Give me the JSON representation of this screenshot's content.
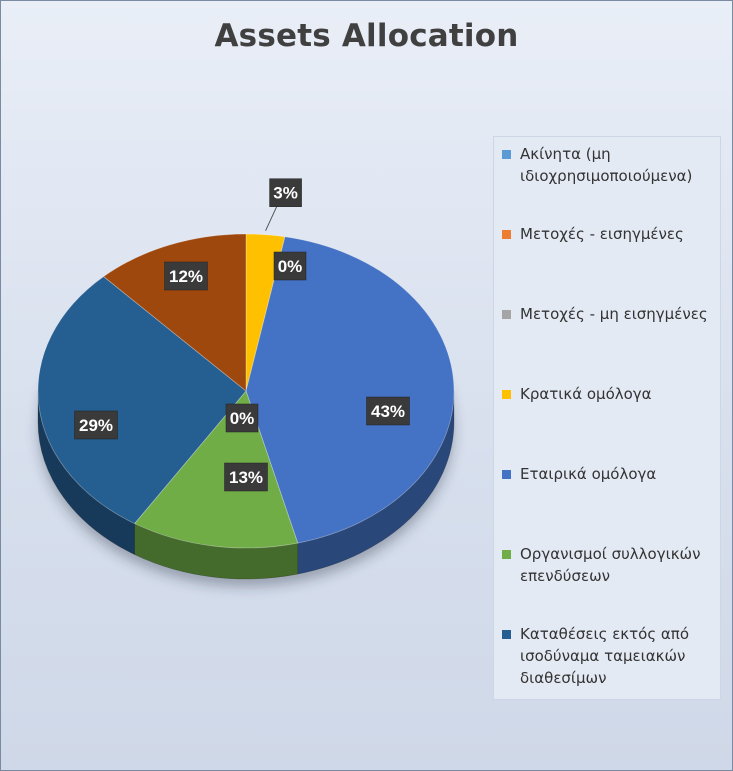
{
  "chart_data": {
    "type": "pie",
    "title": "Assets Allocation",
    "legend_position": "right",
    "slices": [
      {
        "label": "Ακίνητα (μη ιδιοχρησιμοποιούμενα)",
        "value": 0,
        "display": "0%",
        "color": "#5b9bd5"
      },
      {
        "label": "Μετοχές - εισηγμένες",
        "value": 0,
        "display": "",
        "color": "#ed7d31"
      },
      {
        "label": "Μετοχές - μη εισηγμένες",
        "value": 0,
        "display": "",
        "color": "#a5a5a5"
      },
      {
        "label": "Κρατικά ομόλογα",
        "value": 3,
        "display": "3%",
        "color": "#ffc000"
      },
      {
        "label": "Εταιρικά ομόλογα",
        "value": 43,
        "display": "43%",
        "color": "#4472c4"
      },
      {
        "label": "Οργανισμοί συλλογικών επενδύσεων",
        "value": 13,
        "display": "13%",
        "color": "#70ad47"
      },
      {
        "label": "Καταθέσεις εκτός από ισοδύναμα ταμειακών διαθεσίμων",
        "value": 29,
        "display": "29%",
        "color": "#255e91"
      },
      {
        "label": "",
        "value": 12,
        "display": "12%",
        "color": "#9e480e"
      },
      {
        "label": "",
        "value": 0,
        "display": "0%",
        "color": "#636363"
      }
    ]
  },
  "legend": [
    {
      "text": "Ακίνητα (μη ιδιοχρησιμοποιούμενα)",
      "color": "#5b9bd5"
    },
    {
      "text": "Μετοχές - εισηγμένες",
      "color": "#ed7d31"
    },
    {
      "text": "Μετοχές - μη εισηγμένες",
      "color": "#a5a5a5"
    },
    {
      "text": "Κρατικά ομόλογα",
      "color": "#ffc000"
    },
    {
      "text": "Εταιρικά ομόλογα",
      "color": "#4472c4"
    },
    {
      "text": "Οργανισμοί συλλογικών επενδύσεων",
      "color": "#70ad47"
    },
    {
      "text": "Καταθέσεις εκτός από ισοδύναμα ταμειακών διαθεσίμων",
      "color": "#255e91"
    }
  ]
}
